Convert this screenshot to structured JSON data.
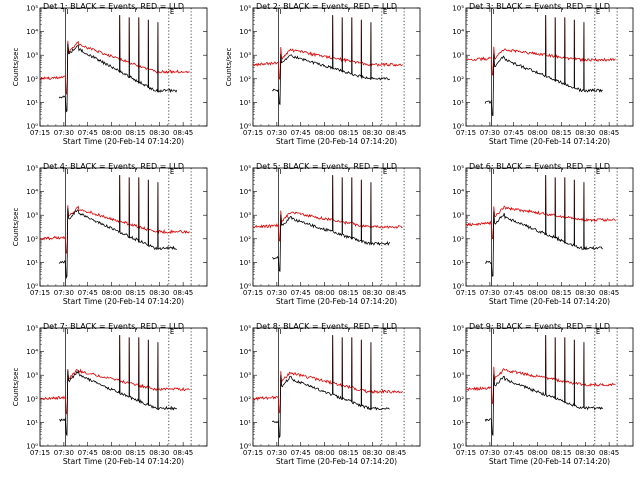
{
  "figure": {
    "layout": "3x3 grid of detector light curves",
    "x_tick_labels": [
      "07:15",
      "07:30",
      "07:45",
      "08:00",
      "08:15",
      "08:30",
      "08:45"
    ],
    "x_label": "Start Time (20-Feb-14 07:14:20)",
    "y_label": "Counts/sec",
    "y_tick_labels": [
      "10⁰",
      "10¹",
      "10²",
      "10³",
      "10⁴",
      "10⁵"
    ],
    "colors": {
      "events": "#000000",
      "lld": "#dd0000"
    }
  },
  "chart_data": [
    {
      "type": "line",
      "title": "Det 1: BLACK = Events, RED = LLD",
      "show_ylabel": true,
      "xlim": [
        0,
        105
      ],
      "ylim": [
        0,
        5
      ],
      "xlabel": "Start Time (20-Feb-14 07:14:20)",
      "ylabel": "Counts/sec",
      "markers": [
        {
          "x": 16,
          "style": "solid",
          "label": "I"
        },
        {
          "x": 81,
          "style": "dotted",
          "label": "E"
        },
        {
          "x": 95,
          "style": "dotted",
          "label": ""
        }
      ],
      "series": [
        {
          "name": "LLD",
          "color": "#dd0000",
          "start": 0,
          "end": 94,
          "base": 2.0,
          "flare_peak": 3.6,
          "flare_t": 16.5,
          "tail": 2.3,
          "spikes": [
            {
              "x": 50,
              "y": 4.7
            },
            {
              "x": 56,
              "y": 4.6
            },
            {
              "x": 62,
              "y": 4.6
            },
            {
              "x": 68,
              "y": 4.5
            },
            {
              "x": 74,
              "y": 4.4
            }
          ]
        },
        {
          "name": "Events",
          "color": "#000000",
          "start": 12,
          "end": 86,
          "base": 1.2,
          "flare_peak": 3.5,
          "flare_t": 16.5,
          "tail": 1.5,
          "spikes": [
            {
              "x": 50,
              "y": 4.7
            },
            {
              "x": 56,
              "y": 4.6
            },
            {
              "x": 62,
              "y": 4.6
            },
            {
              "x": 68,
              "y": 4.5
            },
            {
              "x": 74,
              "y": 4.4
            }
          ]
        }
      ]
    },
    {
      "type": "line",
      "title": "Det 2: BLACK = Events, RED = LLD",
      "show_ylabel": true,
      "xlim": [
        0,
        105
      ],
      "ylim": [
        0,
        5
      ],
      "xlabel": "Start Time (20-Feb-14 07:14:20)",
      "ylabel": "Counts/sec",
      "markers": [
        {
          "x": 16,
          "style": "solid",
          "label": "I"
        },
        {
          "x": 81,
          "style": "dotted",
          "label": "E"
        },
        {
          "x": 95,
          "style": "dotted",
          "label": ""
        }
      ],
      "series": [
        {
          "name": "LLD",
          "color": "#dd0000",
          "start": 0,
          "end": 94,
          "base": 2.6,
          "flare_peak": 3.3,
          "flare_t": 16.5,
          "tail": 2.6,
          "spikes": [
            {
              "x": 50,
              "y": 4.7
            },
            {
              "x": 56,
              "y": 4.6
            },
            {
              "x": 62,
              "y": 4.6
            },
            {
              "x": 68,
              "y": 4.5
            },
            {
              "x": 74,
              "y": 4.4
            }
          ]
        },
        {
          "name": "Events",
          "color": "#000000",
          "start": 12,
          "end": 86,
          "base": 1.5,
          "flare_peak": 3.1,
          "flare_t": 16.5,
          "tail": 2.0,
          "spikes": [
            {
              "x": 50,
              "y": 4.7
            },
            {
              "x": 56,
              "y": 4.6
            },
            {
              "x": 62,
              "y": 4.6
            },
            {
              "x": 68,
              "y": 4.5
            },
            {
              "x": 74,
              "y": 4.4
            }
          ]
        }
      ]
    },
    {
      "type": "line",
      "title": "Det 3: BLACK = Events, RED = LLD",
      "show_ylabel": false,
      "xlim": [
        0,
        105
      ],
      "ylim": [
        0,
        5
      ],
      "xlabel": "Start Time (20-Feb-14 07:14:20)",
      "ylabel": "Counts/sec",
      "markers": [
        {
          "x": 16,
          "style": "solid",
          "label": "I"
        },
        {
          "x": 81,
          "style": "dotted",
          "label": "E"
        },
        {
          "x": 95,
          "style": "dotted",
          "label": ""
        }
      ],
      "series": [
        {
          "name": "LLD",
          "color": "#dd0000",
          "start": 0,
          "end": 94,
          "base": 2.8,
          "flare_peak": 3.3,
          "flare_t": 16.5,
          "tail": 2.8,
          "spikes": [
            {
              "x": 50,
              "y": 4.7
            },
            {
              "x": 56,
              "y": 4.6
            },
            {
              "x": 62,
              "y": 4.6
            },
            {
              "x": 68,
              "y": 4.5
            },
            {
              "x": 74,
              "y": 4.4
            }
          ]
        },
        {
          "name": "Events",
          "color": "#000000",
          "start": 12,
          "end": 86,
          "base": 1.0,
          "flare_peak": 3.0,
          "flare_t": 16.5,
          "tail": 1.5,
          "spikes": [
            {
              "x": 50,
              "y": 4.7
            },
            {
              "x": 56,
              "y": 4.6
            },
            {
              "x": 62,
              "y": 4.6
            },
            {
              "x": 68,
              "y": 4.5
            },
            {
              "x": 74,
              "y": 4.4
            }
          ]
        }
      ]
    },
    {
      "type": "line",
      "title": "Det 4: BLACK = Events, RED = LLD",
      "show_ylabel": true,
      "xlim": [
        0,
        105
      ],
      "ylim": [
        0,
        5
      ],
      "xlabel": "Start Time (20-Feb-14 07:14:20)",
      "ylabel": "Counts/sec",
      "markers": [
        {
          "x": 16,
          "style": "solid",
          "label": "I"
        },
        {
          "x": 81,
          "style": "dotted",
          "label": "E"
        },
        {
          "x": 95,
          "style": "dotted",
          "label": ""
        }
      ],
      "series": [
        {
          "name": "LLD",
          "color": "#dd0000",
          "start": 0,
          "end": 94,
          "base": 2.0,
          "flare_peak": 3.4,
          "flare_t": 16.5,
          "tail": 2.3,
          "spikes": [
            {
              "x": 50,
              "y": 4.7
            },
            {
              "x": 56,
              "y": 4.6
            },
            {
              "x": 62,
              "y": 4.6
            },
            {
              "x": 68,
              "y": 4.5
            },
            {
              "x": 74,
              "y": 4.4
            }
          ]
        },
        {
          "name": "Events",
          "color": "#000000",
          "start": 12,
          "end": 86,
          "base": 1.0,
          "flare_peak": 3.3,
          "flare_t": 16.5,
          "tail": 1.6,
          "spikes": [
            {
              "x": 50,
              "y": 4.7
            },
            {
              "x": 56,
              "y": 4.6
            },
            {
              "x": 62,
              "y": 4.6
            },
            {
              "x": 68,
              "y": 4.5
            },
            {
              "x": 74,
              "y": 4.4
            }
          ]
        }
      ]
    },
    {
      "type": "line",
      "title": "Det 5: BLACK = Events, RED = LLD",
      "show_ylabel": false,
      "xlim": [
        0,
        105
      ],
      "ylim": [
        0,
        5
      ],
      "xlabel": "Start Time (20-Feb-14 07:14:20)",
      "ylabel": "Counts/sec",
      "markers": [
        {
          "x": 16,
          "style": "solid",
          "label": "I"
        },
        {
          "x": 81,
          "style": "dotted",
          "label": "E"
        },
        {
          "x": 95,
          "style": "dotted",
          "label": ""
        }
      ],
      "series": [
        {
          "name": "LLD",
          "color": "#dd0000",
          "start": 0,
          "end": 94,
          "base": 2.5,
          "flare_peak": 3.2,
          "flare_t": 16.5,
          "tail": 2.5,
          "spikes": [
            {
              "x": 50,
              "y": 4.7
            },
            {
              "x": 56,
              "y": 4.6
            },
            {
              "x": 62,
              "y": 4.6
            },
            {
              "x": 68,
              "y": 4.5
            },
            {
              "x": 74,
              "y": 4.4
            }
          ]
        },
        {
          "name": "Events",
          "color": "#000000",
          "start": 12,
          "end": 86,
          "base": 1.2,
          "flare_peak": 3.0,
          "flare_t": 16.5,
          "tail": 1.8,
          "spikes": [
            {
              "x": 50,
              "y": 4.7
            },
            {
              "x": 56,
              "y": 4.6
            },
            {
              "x": 62,
              "y": 4.6
            },
            {
              "x": 68,
              "y": 4.5
            },
            {
              "x": 74,
              "y": 4.4
            }
          ]
        }
      ]
    },
    {
      "type": "line",
      "title": "Det 6: BLACK = Events, RED = LLD",
      "show_ylabel": false,
      "xlim": [
        0,
        105
      ],
      "ylim": [
        0,
        5
      ],
      "xlabel": "Start Time (20-Feb-14 07:14:20)",
      "ylabel": "Counts/sec",
      "markers": [
        {
          "x": 16,
          "style": "solid",
          "label": "I"
        },
        {
          "x": 81,
          "style": "dotted",
          "label": "E"
        },
        {
          "x": 95,
          "style": "dotted",
          "label": ""
        }
      ],
      "series": [
        {
          "name": "LLD",
          "color": "#dd0000",
          "start": 0,
          "end": 94,
          "base": 2.6,
          "flare_peak": 3.4,
          "flare_t": 16.5,
          "tail": 2.8,
          "spikes": [
            {
              "x": 50,
              "y": 4.7
            },
            {
              "x": 56,
              "y": 4.6
            },
            {
              "x": 62,
              "y": 4.6
            },
            {
              "x": 68,
              "y": 4.5
            },
            {
              "x": 74,
              "y": 4.4
            }
          ]
        },
        {
          "name": "Events",
          "color": "#000000",
          "start": 12,
          "end": 86,
          "base": 1.0,
          "flare_peak": 3.1,
          "flare_t": 16.5,
          "tail": 1.6,
          "spikes": [
            {
              "x": 50,
              "y": 4.7
            },
            {
              "x": 56,
              "y": 4.6
            },
            {
              "x": 62,
              "y": 4.6
            },
            {
              "x": 68,
              "y": 4.5
            },
            {
              "x": 74,
              "y": 4.4
            }
          ]
        }
      ]
    },
    {
      "type": "line",
      "title": "Det 7: BLACK = Events, RED = LLD",
      "show_ylabel": true,
      "xlim": [
        0,
        105
      ],
      "ylim": [
        0,
        5
      ],
      "xlabel": "Start Time (20-Feb-14 07:14:20)",
      "ylabel": "Counts/sec",
      "markers": [
        {
          "x": 16,
          "style": "solid",
          "label": "I"
        },
        {
          "x": 81,
          "style": "dotted",
          "label": "E"
        },
        {
          "x": 95,
          "style": "dotted",
          "label": ""
        }
      ],
      "series": [
        {
          "name": "LLD",
          "color": "#dd0000",
          "start": 0,
          "end": 94,
          "base": 2.0,
          "flare_peak": 3.3,
          "flare_t": 16.5,
          "tail": 2.4,
          "spikes": [
            {
              "x": 50,
              "y": 4.7
            },
            {
              "x": 56,
              "y": 4.6
            },
            {
              "x": 62,
              "y": 4.6
            },
            {
              "x": 68,
              "y": 4.5
            },
            {
              "x": 74,
              "y": 4.4
            }
          ]
        },
        {
          "name": "Events",
          "color": "#000000",
          "start": 12,
          "end": 86,
          "base": 1.1,
          "flare_peak": 3.2,
          "flare_t": 16.5,
          "tail": 1.6,
          "spikes": [
            {
              "x": 50,
              "y": 4.7
            },
            {
              "x": 56,
              "y": 4.6
            },
            {
              "x": 62,
              "y": 4.6
            },
            {
              "x": 68,
              "y": 4.5
            },
            {
              "x": 74,
              "y": 4.4
            }
          ]
        }
      ]
    },
    {
      "type": "line",
      "title": "Det 8: BLACK = Events, RED = LLD",
      "show_ylabel": false,
      "xlim": [
        0,
        105
      ],
      "ylim": [
        0,
        5
      ],
      "xlabel": "Start Time (20-Feb-14 07:14:20)",
      "ylabel": "Counts/sec",
      "markers": [
        {
          "x": 16,
          "style": "solid",
          "label": "I"
        },
        {
          "x": 81,
          "style": "dotted",
          "label": "E"
        },
        {
          "x": 95,
          "style": "dotted",
          "label": ""
        }
      ],
      "series": [
        {
          "name": "LLD",
          "color": "#dd0000",
          "start": 0,
          "end": 94,
          "base": 2.0,
          "flare_peak": 3.2,
          "flare_t": 16.5,
          "tail": 2.3,
          "spikes": [
            {
              "x": 50,
              "y": 4.7
            },
            {
              "x": 56,
              "y": 4.6
            },
            {
              "x": 62,
              "y": 4.6
            },
            {
              "x": 68,
              "y": 4.5
            },
            {
              "x": 74,
              "y": 4.4
            }
          ]
        },
        {
          "name": "Events",
          "color": "#000000",
          "start": 12,
          "end": 86,
          "base": 1.0,
          "flare_peak": 3.0,
          "flare_t": 16.5,
          "tail": 1.6,
          "spikes": [
            {
              "x": 50,
              "y": 4.7
            },
            {
              "x": 56,
              "y": 4.6
            },
            {
              "x": 62,
              "y": 4.6
            },
            {
              "x": 68,
              "y": 4.5
            },
            {
              "x": 74,
              "y": 4.4
            }
          ]
        }
      ]
    },
    {
      "type": "line",
      "title": "Det 9: BLACK = Events, RED = LLD",
      "show_ylabel": false,
      "xlim": [
        0,
        105
      ],
      "ylim": [
        0,
        5
      ],
      "xlabel": "Start Time (20-Feb-14 07:14:20)",
      "ylabel": "Counts/sec",
      "markers": [
        {
          "x": 16,
          "style": "solid",
          "label": "I"
        },
        {
          "x": 81,
          "style": "dotted",
          "label": "E"
        },
        {
          "x": 95,
          "style": "dotted",
          "label": ""
        }
      ],
      "series": [
        {
          "name": "LLD",
          "color": "#dd0000",
          "start": 0,
          "end": 94,
          "base": 2.4,
          "flare_peak": 3.3,
          "flare_t": 16.5,
          "tail": 2.6,
          "spikes": [
            {
              "x": 50,
              "y": 4.7
            },
            {
              "x": 56,
              "y": 4.6
            },
            {
              "x": 62,
              "y": 4.6
            },
            {
              "x": 68,
              "y": 4.5
            },
            {
              "x": 74,
              "y": 4.4
            }
          ]
        },
        {
          "name": "Events",
          "color": "#000000",
          "start": 12,
          "end": 86,
          "base": 1.1,
          "flare_peak": 3.0,
          "flare_t": 16.5,
          "tail": 1.6,
          "spikes": [
            {
              "x": 50,
              "y": 4.7
            },
            {
              "x": 56,
              "y": 4.6
            },
            {
              "x": 62,
              "y": 4.6
            },
            {
              "x": 68,
              "y": 4.5
            },
            {
              "x": 74,
              "y": 4.4
            }
          ]
        }
      ]
    }
  ]
}
